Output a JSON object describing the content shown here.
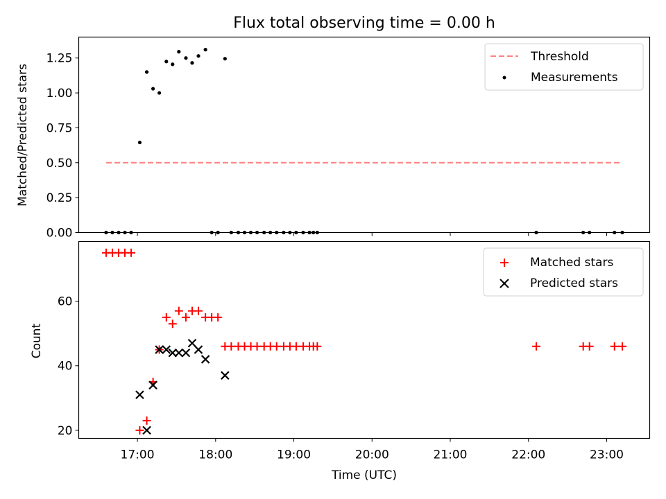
{
  "chart_data": [
    {
      "type": "scatter",
      "title": "Flux total observing time = 0.00 h",
      "xlabel": "",
      "ylabel": "Matched/Predicted stars",
      "xlim": [
        16.25,
        23.55
      ],
      "ylim": [
        0,
        1.4
      ],
      "yticks": [
        0.0,
        0.25,
        0.5,
        0.75,
        1.0,
        1.25
      ],
      "ytick_labels": [
        "0.00",
        "0.25",
        "0.50",
        "0.75",
        "1.00",
        "1.25"
      ],
      "legend_loc": "top-right",
      "series": [
        {
          "name": "Threshold",
          "kind": "dashed-line",
          "color": "#ff7f7f",
          "x": [
            16.6,
            23.2
          ],
          "y": [
            0.5,
            0.5
          ]
        },
        {
          "name": "Measurements",
          "kind": "dots",
          "color": "#000000",
          "x": [
            16.6,
            16.68,
            16.76,
            16.84,
            16.92,
            17.03,
            17.12,
            17.2,
            17.28,
            17.37,
            17.45,
            17.53,
            17.62,
            17.7,
            17.78,
            17.87,
            18.12,
            17.95,
            18.03,
            18.2,
            18.29,
            18.37,
            18.45,
            18.53,
            18.62,
            18.7,
            18.78,
            18.87,
            18.95,
            19.03,
            19.12,
            19.2,
            19.25,
            19.3,
            22.1,
            22.7,
            22.78,
            23.1,
            23.2
          ],
          "y": [
            0,
            0,
            0,
            0,
            0,
            0.645,
            1.15,
            1.03,
            1.0,
            1.225,
            1.205,
            1.295,
            1.25,
            1.215,
            1.265,
            1.31,
            1.245,
            0,
            0,
            0,
            0,
            0,
            0,
            0,
            0,
            0,
            0,
            0,
            0,
            0,
            0,
            0,
            0,
            0,
            0,
            0,
            0,
            0,
            0
          ]
        }
      ]
    },
    {
      "type": "scatter",
      "title": "",
      "xlabel": "Time (UTC)",
      "ylabel": "Count",
      "xlim": [
        16.25,
        23.55
      ],
      "ylim": [
        17.5,
        78.5
      ],
      "yticks": [
        20,
        40,
        60
      ],
      "ytick_labels": [
        "20",
        "40",
        "60"
      ],
      "xticks": [
        17,
        18,
        19,
        20,
        21,
        22,
        23
      ],
      "xtick_labels": [
        "17:00",
        "18:00",
        "19:00",
        "20:00",
        "21:00",
        "22:00",
        "23:00"
      ],
      "legend_loc": "top-right",
      "series": [
        {
          "name": "Matched stars",
          "marker": "plus",
          "color": "#ff0000",
          "x": [
            16.6,
            16.68,
            16.76,
            16.84,
            16.92,
            17.03,
            17.12,
            17.2,
            17.28,
            17.37,
            17.45,
            17.53,
            17.62,
            17.7,
            17.78,
            17.87,
            17.95,
            18.03,
            18.12,
            18.2,
            18.29,
            18.37,
            18.45,
            18.53,
            18.62,
            18.7,
            18.78,
            18.87,
            18.95,
            19.03,
            19.12,
            19.2,
            19.25,
            19.3,
            22.1,
            22.7,
            22.78,
            23.1,
            23.2
          ],
          "y": [
            75,
            75,
            75,
            75,
            75,
            20,
            23,
            35,
            45,
            55,
            53,
            57,
            55,
            57,
            57,
            55,
            55,
            55,
            46,
            46,
            46,
            46,
            46,
            46,
            46,
            46,
            46,
            46,
            46,
            46,
            46,
            46,
            46,
            46,
            46,
            46,
            46,
            46,
            46
          ]
        },
        {
          "name": "Predicted stars",
          "marker": "x",
          "color": "#000000",
          "x": [
            17.03,
            17.12,
            17.2,
            17.28,
            17.37,
            17.45,
            17.53,
            17.62,
            17.7,
            17.78,
            17.87,
            18.12
          ],
          "y": [
            31,
            20,
            34,
            45,
            45,
            44,
            44,
            44,
            47,
            45,
            42,
            37
          ]
        }
      ]
    }
  ]
}
